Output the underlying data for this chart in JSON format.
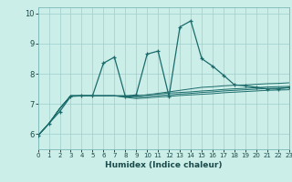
{
  "xlabel": "Humidex (Indice chaleur)",
  "bg_color": "#cceee8",
  "grid_color": "#9ecece",
  "line_color": "#1a6b6b",
  "xlim": [
    0,
    23
  ],
  "ylim": [
    5.5,
    10.2
  ],
  "xticks": [
    0,
    1,
    2,
    3,
    4,
    5,
    6,
    7,
    8,
    9,
    10,
    11,
    12,
    13,
    14,
    15,
    16,
    17,
    18,
    19,
    20,
    21,
    22,
    23
  ],
  "yticks": [
    6,
    7,
    8,
    9,
    10
  ],
  "series": [
    [
      5.95,
      6.35,
      6.75,
      7.25,
      7.27,
      7.27,
      8.35,
      8.55,
      7.25,
      7.3,
      8.65,
      8.75,
      7.25,
      9.55,
      9.75,
      8.5,
      8.25,
      7.95,
      7.63,
      7.6,
      7.55,
      7.5,
      7.5,
      7.55
    ],
    [
      5.95,
      6.35,
      6.85,
      7.27,
      7.27,
      7.27,
      7.27,
      7.27,
      7.27,
      7.27,
      7.3,
      7.35,
      7.4,
      7.45,
      7.5,
      7.55,
      7.57,
      7.6,
      7.62,
      7.63,
      7.65,
      7.67,
      7.68,
      7.7
    ],
    [
      5.95,
      6.35,
      6.85,
      7.27,
      7.27,
      7.27,
      7.27,
      7.27,
      7.27,
      7.27,
      7.3,
      7.33,
      7.36,
      7.38,
      7.4,
      7.43,
      7.45,
      7.48,
      7.5,
      7.52,
      7.54,
      7.56,
      7.57,
      7.58
    ],
    [
      5.95,
      6.35,
      6.85,
      7.27,
      7.27,
      7.27,
      7.27,
      7.27,
      7.24,
      7.22,
      7.25,
      7.28,
      7.3,
      7.33,
      7.35,
      7.38,
      7.4,
      7.43,
      7.45,
      7.47,
      7.49,
      7.51,
      7.52,
      7.53
    ],
    [
      5.95,
      6.35,
      6.85,
      7.27,
      7.27,
      7.27,
      7.27,
      7.27,
      7.22,
      7.18,
      7.2,
      7.23,
      7.25,
      7.28,
      7.3,
      7.32,
      7.34,
      7.37,
      7.39,
      7.41,
      7.43,
      7.45,
      7.46,
      7.47
    ]
  ]
}
